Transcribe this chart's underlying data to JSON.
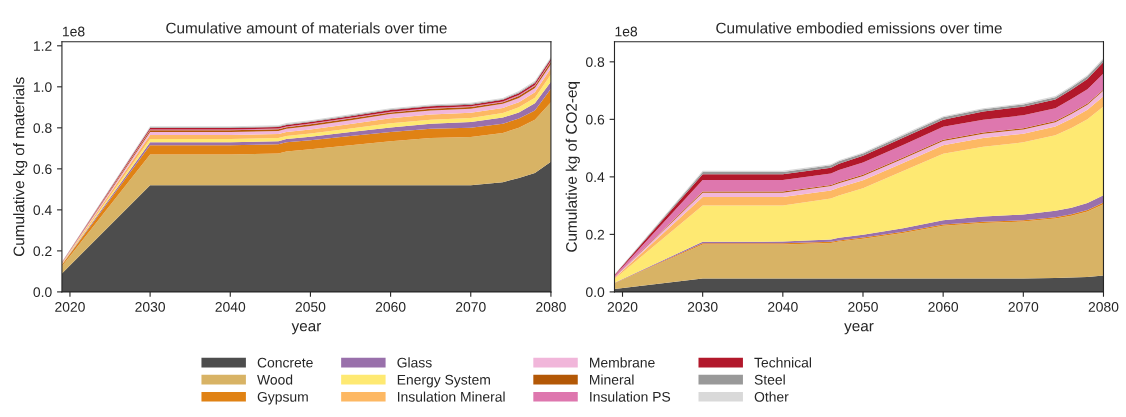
{
  "chart_data": [
    {
      "type": "area",
      "stacked": true,
      "title": "Cumulative amount of materials over time",
      "xlabel": "year",
      "ylabel": "Cumulative kg of materials",
      "annotations": [
        "1e8"
      ],
      "legend": "bottom",
      "grid": false,
      "x": [
        2019,
        2030,
        2040,
        2046,
        2047,
        2050,
        2055,
        2060,
        2065,
        2070,
        2074,
        2076,
        2078,
        2080
      ],
      "xlim": [
        2019,
        2080
      ],
      "xticks": [
        2020,
        2030,
        2040,
        2050,
        2060,
        2070,
        2080
      ],
      "ylim": [
        0,
        1.22
      ],
      "yticks": [
        {
          "value": 0,
          "label": "0.0"
        },
        {
          "value": 0.2,
          "label": "0.2"
        },
        {
          "value": 0.4,
          "label": "0.4"
        },
        {
          "value": 0.6,
          "label": "0.6"
        },
        {
          "value": 0.8,
          "label": "0.8"
        },
        {
          "value": 1.0,
          "label": "1.0"
        },
        {
          "value": 1.2,
          "label": "1.2"
        }
      ],
      "series": [
        {
          "name": "Concrete",
          "color": "#4d4d4d",
          "values": [
            0.09,
            0.52,
            0.52,
            0.52,
            0.52,
            0.52,
            0.52,
            0.52,
            0.52,
            0.52,
            0.535,
            0.555,
            0.58,
            0.635
          ]
        },
        {
          "name": "Wood",
          "color": "#d8b365",
          "values": [
            0.035,
            0.15,
            0.15,
            0.155,
            0.165,
            0.175,
            0.195,
            0.215,
            0.23,
            0.235,
            0.24,
            0.245,
            0.26,
            0.29
          ]
        },
        {
          "name": "Gypsum",
          "color": "#e08214",
          "values": [
            0.007,
            0.045,
            0.045,
            0.045,
            0.045,
            0.045,
            0.045,
            0.045,
            0.045,
            0.045,
            0.045,
            0.045,
            0.045,
            0.065
          ]
        },
        {
          "name": "Glass",
          "color": "#9970ab",
          "values": [
            0.002,
            0.015,
            0.015,
            0.015,
            0.015,
            0.017,
            0.02,
            0.022,
            0.025,
            0.028,
            0.03,
            0.03,
            0.035,
            0.035
          ]
        },
        {
          "name": "Energy System",
          "color": "#fee972",
          "values": [
            0.002,
            0.015,
            0.015,
            0.015,
            0.015,
            0.015,
            0.017,
            0.02,
            0.02,
            0.02,
            0.022,
            0.025,
            0.027,
            0.035
          ]
        },
        {
          "name": "Insulation Mineral",
          "color": "#fdb863",
          "values": [
            0.003,
            0.02,
            0.02,
            0.02,
            0.02,
            0.02,
            0.022,
            0.025,
            0.025,
            0.025,
            0.025,
            0.025,
            0.027,
            0.03
          ]
        },
        {
          "name": "Membrane",
          "color": "#f1b6da",
          "values": [
            0.002,
            0.015,
            0.015,
            0.015,
            0.015,
            0.017,
            0.018,
            0.02,
            0.02,
            0.02,
            0.02,
            0.02,
            0.02,
            0.02
          ]
        },
        {
          "name": "Mineral",
          "color": "#b35806",
          "values": [
            0.001,
            0.008,
            0.008,
            0.008,
            0.008,
            0.008,
            0.008,
            0.008,
            0.008,
            0.008,
            0.008,
            0.01,
            0.01,
            0.012
          ]
        },
        {
          "name": "Insulation PS",
          "color": "#de77ae",
          "values": [
            0.001,
            0.004,
            0.004,
            0.004,
            0.004,
            0.004,
            0.004,
            0.004,
            0.004,
            0.004,
            0.004,
            0.005,
            0.005,
            0.005
          ]
        },
        {
          "name": "Technical",
          "color": "#b2182b",
          "values": [
            0.001,
            0.007,
            0.007,
            0.007,
            0.007,
            0.007,
            0.008,
            0.008,
            0.008,
            0.008,
            0.008,
            0.009,
            0.01,
            0.01
          ]
        },
        {
          "name": "Steel",
          "color": "#999999",
          "values": [
            0.001,
            0.004,
            0.004,
            0.004,
            0.004,
            0.004,
            0.004,
            0.004,
            0.004,
            0.004,
            0.004,
            0.005,
            0.005,
            0.005
          ]
        },
        {
          "name": "Other",
          "color": "#d9d9d9",
          "values": [
            0.001,
            0.005,
            0.005,
            0.005,
            0.005,
            0.005,
            0.005,
            0.005,
            0.005,
            0.005,
            0.005,
            0.005,
            0.005,
            0.005
          ]
        }
      ]
    },
    {
      "type": "area",
      "stacked": true,
      "title": "Cumulative embodied emissions over time",
      "xlabel": "year",
      "ylabel": "Cumulative kg of CO2-eq",
      "annotations": [
        "1e8"
      ],
      "grid": false,
      "x": [
        2019,
        2030,
        2040,
        2046,
        2047,
        2050,
        2055,
        2060,
        2065,
        2070,
        2074,
        2076,
        2078,
        2080
      ],
      "xlim": [
        2019,
        2080
      ],
      "xticks": [
        2020,
        2030,
        2040,
        2050,
        2060,
        2070,
        2080
      ],
      "ylim": [
        0,
        0.87
      ],
      "yticks": [
        {
          "value": 0,
          "label": "0.0"
        },
        {
          "value": 0.2,
          "label": "0.2"
        },
        {
          "value": 0.4,
          "label": "0.4"
        },
        {
          "value": 0.6,
          "label": "0.6"
        },
        {
          "value": 0.8,
          "label": "0.8"
        }
      ],
      "series": [
        {
          "color": "#4d4d4d",
          "values": [
            0.01,
            0.047,
            0.047,
            0.047,
            0.047,
            0.047,
            0.047,
            0.047,
            0.047,
            0.047,
            0.048,
            0.05,
            0.052,
            0.057
          ]
        },
        {
          "color": "#d8b365",
          "values": [
            0.02,
            0.118,
            0.118,
            0.123,
            0.128,
            0.138,
            0.158,
            0.183,
            0.193,
            0.198,
            0.207,
            0.215,
            0.228,
            0.248
          ]
        },
        {
          "color": "#e08214",
          "values": [
            0.001,
            0.004,
            0.004,
            0.004,
            0.004,
            0.004,
            0.004,
            0.004,
            0.004,
            0.004,
            0.005,
            0.005,
            0.005,
            0.006
          ]
        },
        {
          "color": "#9970ab",
          "values": [
            0.001,
            0.005,
            0.006,
            0.008,
            0.009,
            0.01,
            0.012,
            0.015,
            0.018,
            0.02,
            0.022,
            0.023,
            0.024,
            0.025
          ]
        },
        {
          "color": "#fee972",
          "values": [
            0.013,
            0.126,
            0.125,
            0.143,
            0.147,
            0.161,
            0.199,
            0.231,
            0.243,
            0.251,
            0.263,
            0.277,
            0.291,
            0.309
          ]
        },
        {
          "color": "#fdb863",
          "values": [
            0.003,
            0.03,
            0.03,
            0.028,
            0.028,
            0.028,
            0.028,
            0.03,
            0.03,
            0.03,
            0.03,
            0.032,
            0.033,
            0.035
          ]
        },
        {
          "color": "#f1b6da",
          "values": [
            0.002,
            0.015,
            0.015,
            0.015,
            0.015,
            0.015,
            0.015,
            0.015,
            0.015,
            0.015,
            0.015,
            0.017,
            0.018,
            0.02
          ]
        },
        {
          "color": "#b35806",
          "values": [
            0.001,
            0.004,
            0.004,
            0.004,
            0.004,
            0.004,
            0.004,
            0.004,
            0.004,
            0.004,
            0.004,
            0.004,
            0.004,
            0.004
          ]
        },
        {
          "color": "#de77ae",
          "values": [
            0.005,
            0.04,
            0.04,
            0.04,
            0.042,
            0.043,
            0.044,
            0.045,
            0.045,
            0.045,
            0.045,
            0.048,
            0.05,
            0.055
          ]
        },
        {
          "color": "#b2182b",
          "values": [
            0.003,
            0.02,
            0.02,
            0.02,
            0.022,
            0.023,
            0.025,
            0.025,
            0.028,
            0.03,
            0.03,
            0.032,
            0.035,
            0.04
          ]
        },
        {
          "color": "#999999",
          "values": [
            0.001,
            0.008,
            0.008,
            0.008,
            0.008,
            0.008,
            0.008,
            0.008,
            0.008,
            0.008,
            0.008,
            0.009,
            0.01,
            0.01
          ]
        },
        {
          "color": "#d9d9d9",
          "values": [
            0.001,
            0.004,
            0.004,
            0.004,
            0.004,
            0.004,
            0.004,
            0.004,
            0.004,
            0.004,
            0.004,
            0.004,
            0.004,
            0.004
          ]
        }
      ]
    }
  ]
}
